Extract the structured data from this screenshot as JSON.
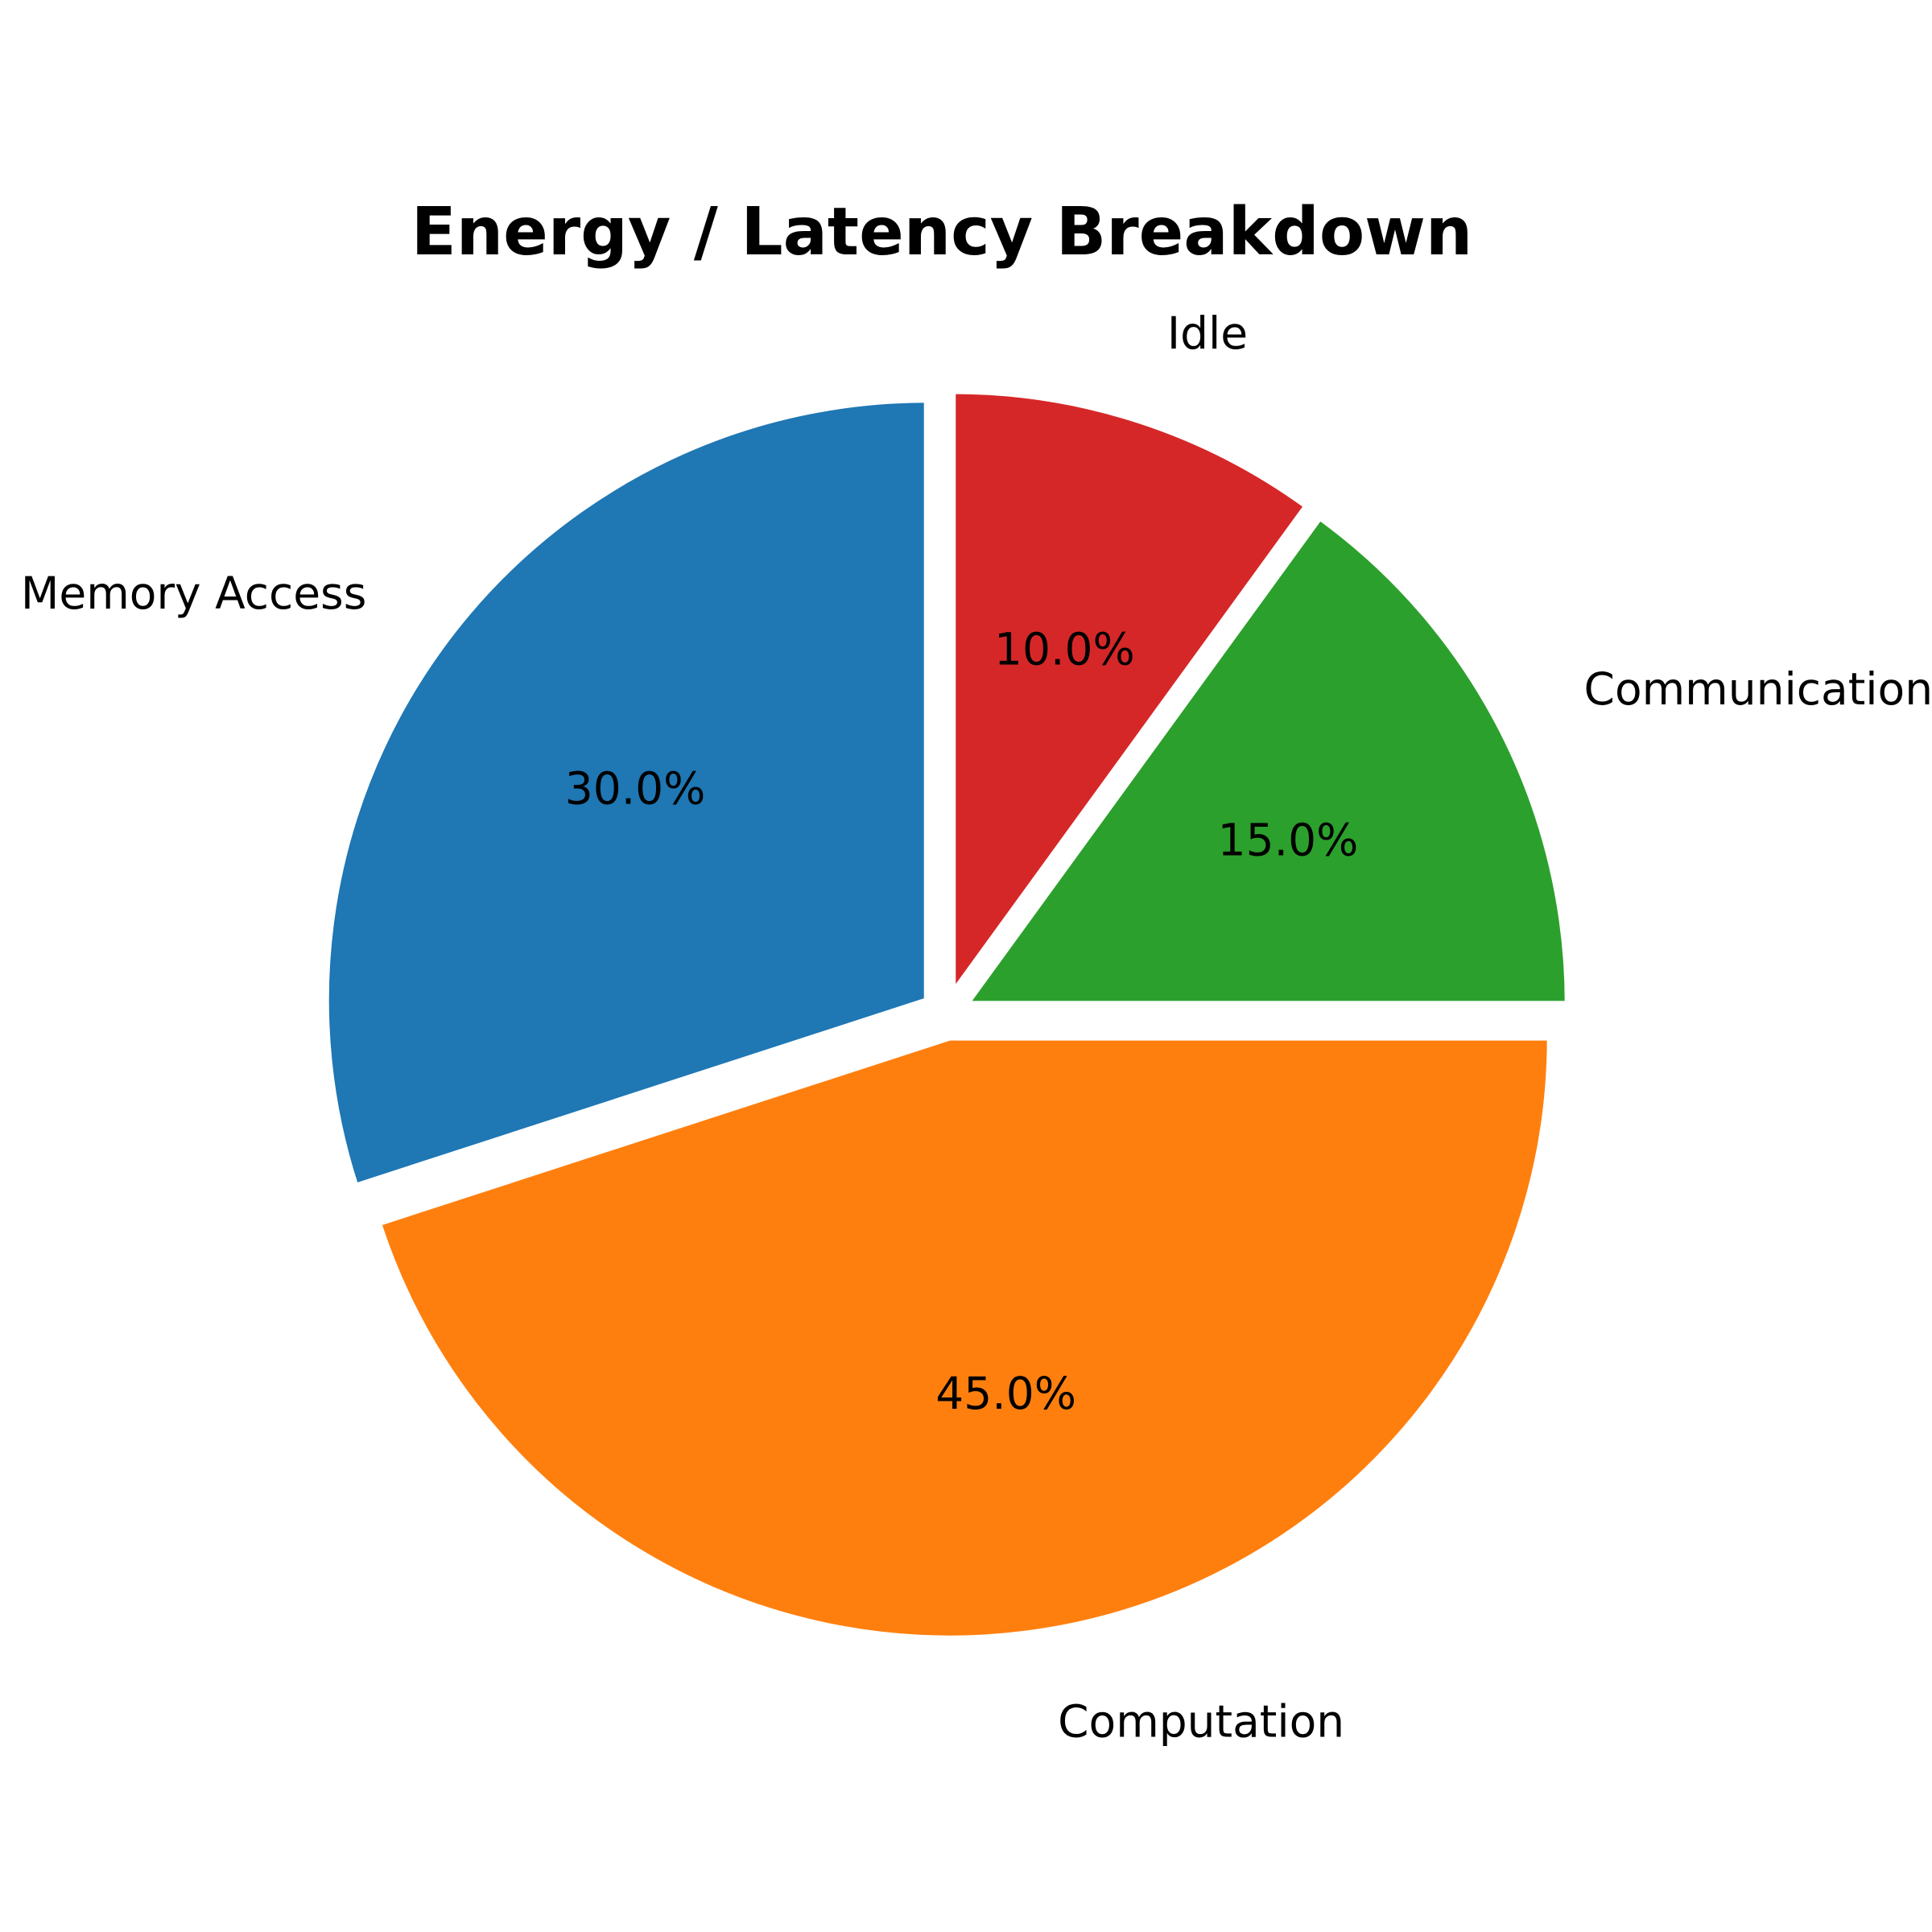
{
  "chart_data": {
    "type": "pie",
    "title": "Energy / Latency Breakdown",
    "start_angle_deg": 90,
    "direction": "counterclockwise",
    "explode": true,
    "slices": [
      {
        "label": "Memory Access",
        "value": 30.0,
        "pct_label": "30.0%",
        "color": "#1f77b4"
      },
      {
        "label": "Computation",
        "value": 45.0,
        "pct_label": "45.0%",
        "color": "#ff7f0e"
      },
      {
        "label": "Communication",
        "value": 15.0,
        "pct_label": "15.0%",
        "color": "#2ca02c"
      },
      {
        "label": "Idle",
        "value": 10.0,
        "pct_label": "10.0%",
        "color": "#d62728"
      }
    ]
  }
}
